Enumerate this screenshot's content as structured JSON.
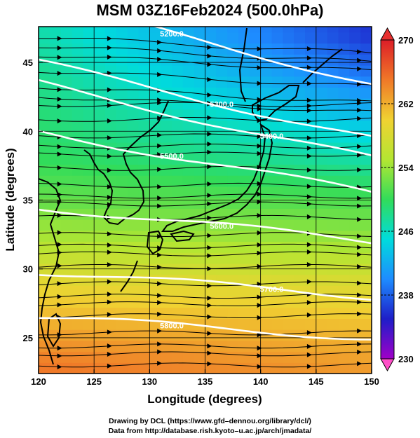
{
  "title": "MSM 03Z16Feb2024 (500.0hPa)",
  "credits": {
    "line1": "Drawing by DCL (https://www.gfd–dennou.org/library/dcl/)",
    "line2": "Data from http://database.rish.kyoto–u.ac.jp/arch/jmadata/"
  },
  "chart_data": {
    "type": "heatmap",
    "title": "MSM 03Z16Feb2024 (500.0hPa)",
    "xlabel": "Longitude (degrees)",
    "ylabel": "Latitude  (degrees)",
    "xlim": [
      120,
      150
    ],
    "ylim": [
      22.4,
      47.6
    ],
    "x_ticks": [
      "120",
      "125",
      "130",
      "135",
      "140",
      "145",
      "150"
    ],
    "y_ticks": [
      "25",
      "30",
      "35",
      "40",
      "45"
    ],
    "colorbar": {
      "min": 230,
      "max": 270,
      "ticks": [
        "230",
        "238",
        "246",
        "254",
        "262",
        "270"
      ],
      "colors": [
        "#a000c8",
        "#1e1ec8",
        "#1e8cff",
        "#00dcdc",
        "#32dc5a",
        "#b4e632",
        "#f0d232",
        "#f07828",
        "#dc1e28"
      ]
    },
    "temperature_field": [
      {
        "lat": 47,
        "west": 247,
        "east": 236
      },
      {
        "lat": 44,
        "west": 248,
        "east": 239
      },
      {
        "lat": 41,
        "west": 249,
        "east": 243
      },
      {
        "lat": 38,
        "west": 250,
        "east": 247
      },
      {
        "lat": 35,
        "west": 252,
        "east": 251
      },
      {
        "lat": 32,
        "west": 255,
        "east": 254
      },
      {
        "lat": 29,
        "west": 259,
        "east": 258
      },
      {
        "lat": 26,
        "west": 262,
        "east": 261
      },
      {
        "lat": 23,
        "west": 265,
        "east": 263
      }
    ],
    "height_contours": [
      {
        "label": "5200.0",
        "lat_at_120": 49.5,
        "lat_at_150": 43.5
      },
      {
        "label": "5300.0",
        "lat_at_120": 45.0,
        "lat_at_150": 39.5
      },
      {
        "label": "5400.0",
        "lat_at_120": 43.5,
        "lat_at_150": 38.0
      },
      {
        "label": "5500.0",
        "lat_at_120": 40.0,
        "lat_at_150": 35.5
      },
      {
        "label": "5600.0",
        "lat_at_120": 34.5,
        "lat_at_150": 32.0
      },
      {
        "label": "5700.0",
        "lat_at_120": 29.8,
        "lat_at_150": 28.0
      },
      {
        "label": "5800.0",
        "lat_at_120": 26.5,
        "lat_at_150": 25.0
      }
    ],
    "wind": "westerly streamlines"
  }
}
